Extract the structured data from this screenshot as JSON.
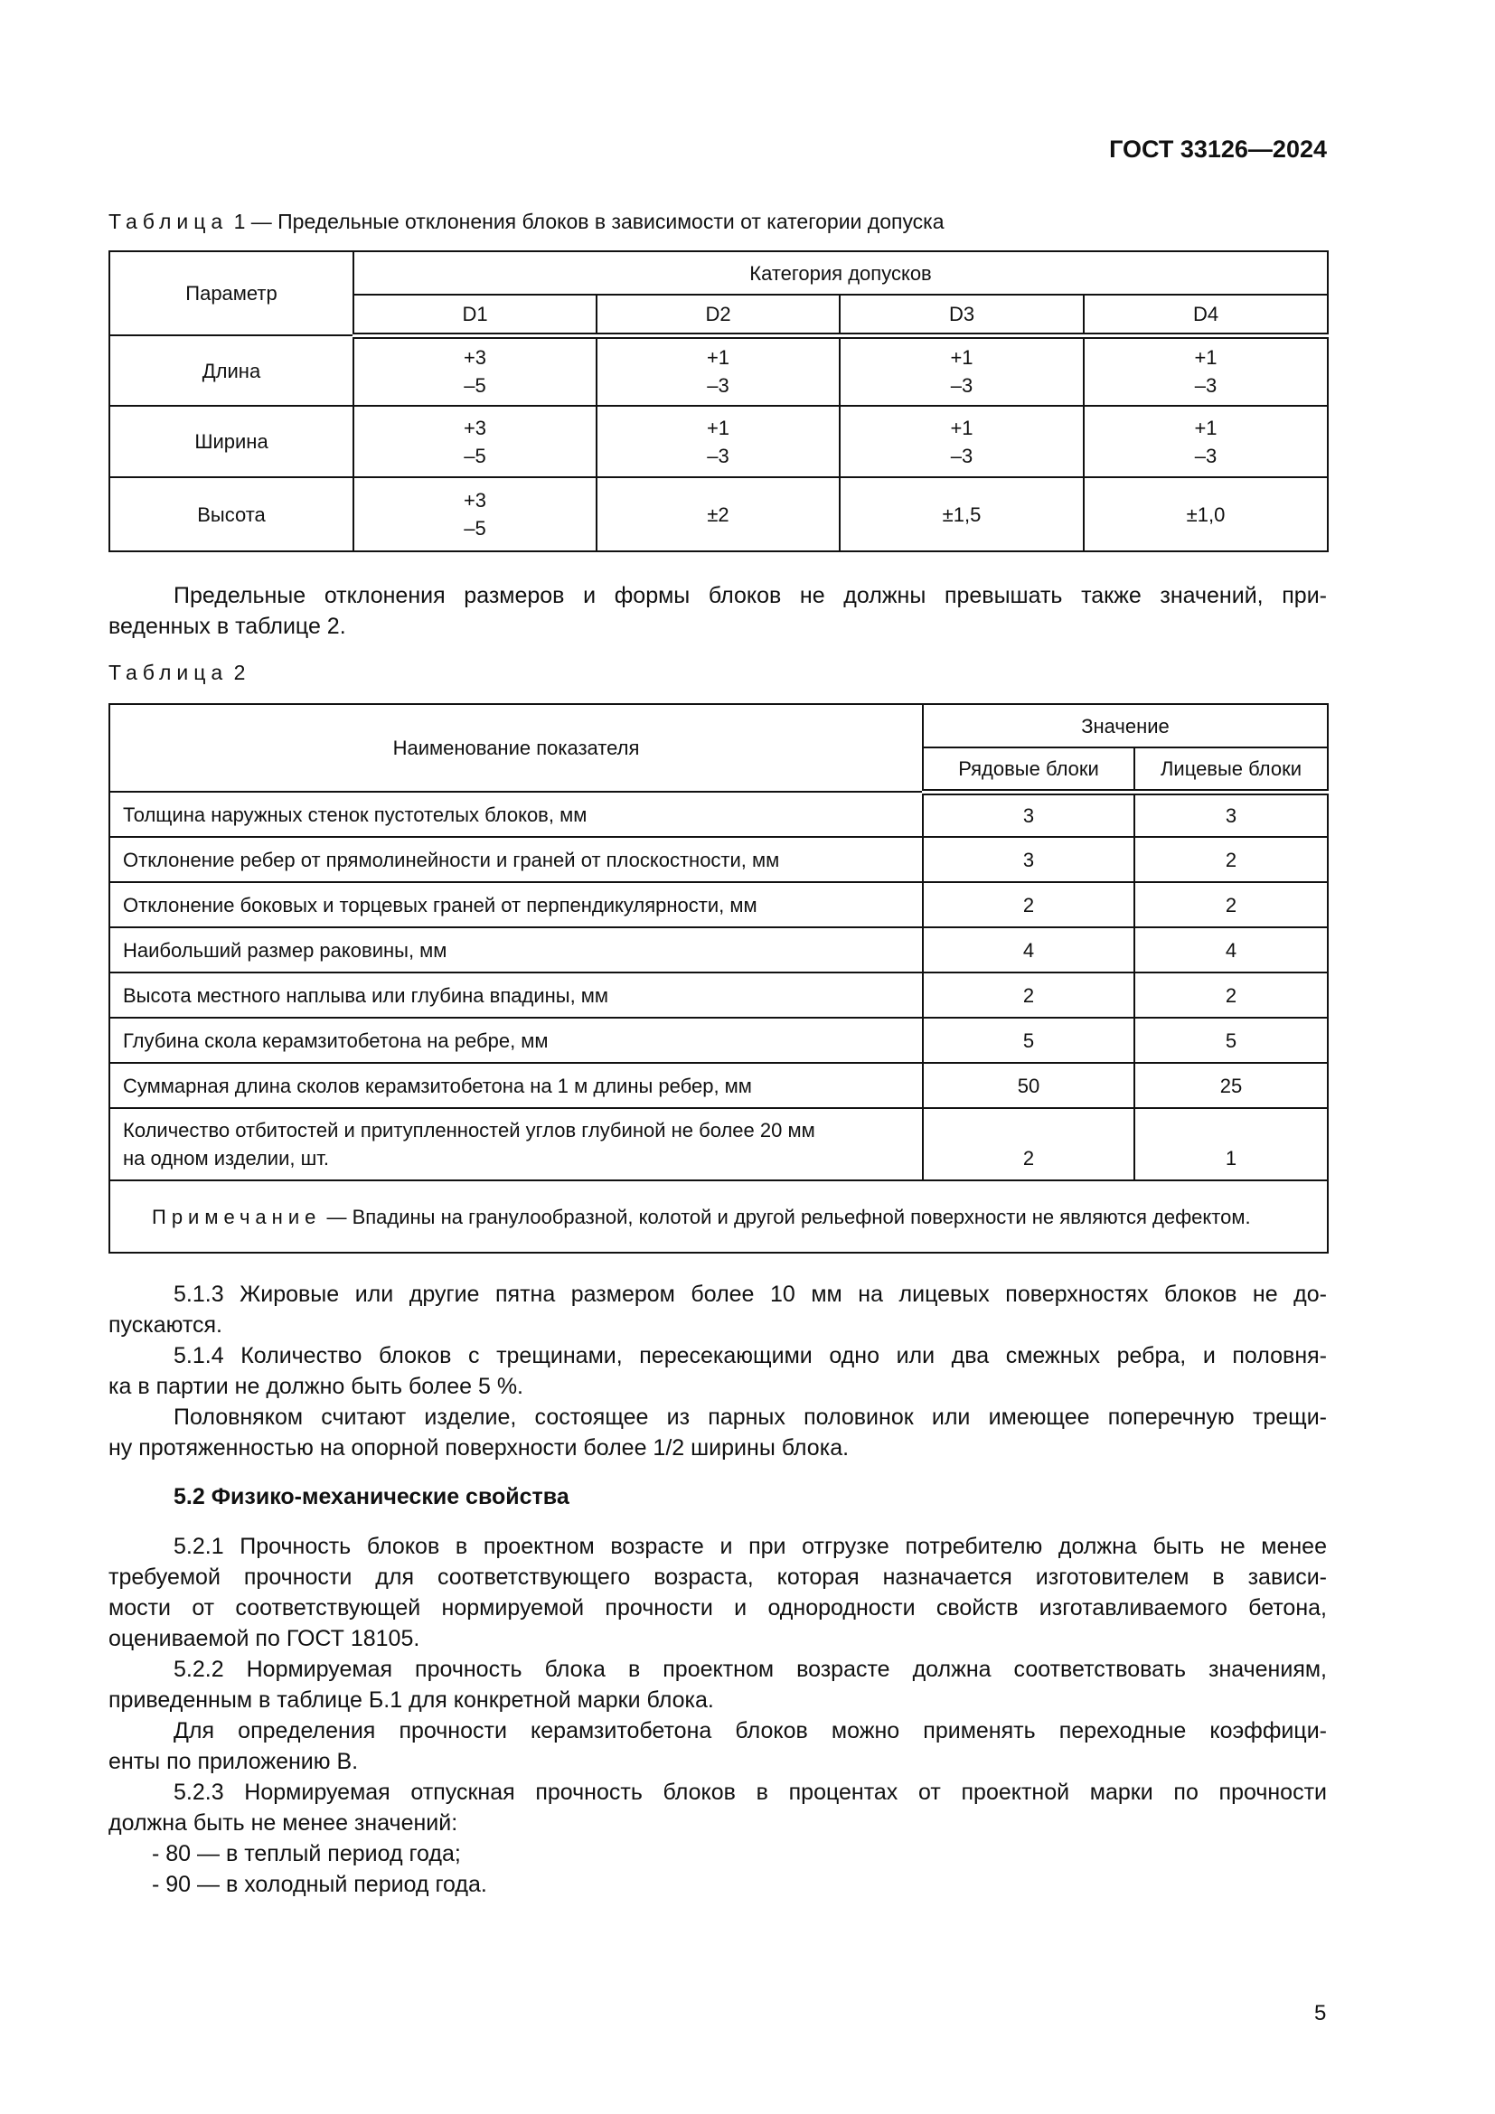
{
  "header": {
    "doc_id": "ГОСТ 33126—2024"
  },
  "table1": {
    "caption_label": "Таблица",
    "caption_text": "1 — Предельные отклонения блоков в зависимости от категории допуска",
    "col_param": "Параметр",
    "col_group": "Категория допусков",
    "categories": [
      "D1",
      "D2",
      "D3",
      "D4"
    ],
    "rows": [
      {
        "param": "Длина",
        "values": [
          "+3\n–5",
          "+1\n–3",
          "+1\n–3",
          "+1\n–3"
        ]
      },
      {
        "param": "Ширина",
        "values": [
          "+3\n–5",
          "+1\n–3",
          "+1\n–3",
          "+1\n–3"
        ]
      },
      {
        "param": "Высота",
        "values": [
          "+3\n–5",
          "±2",
          "±1,5",
          "±1,0"
        ]
      }
    ]
  },
  "para1": {
    "lines": [
      "Предельные отклонения размеров и формы блоков не должны превышать также значений, при-",
      "веденных в таблице 2."
    ]
  },
  "table2": {
    "caption_label": "Таблица",
    "caption_text": "2",
    "col_name": "Наименование показателя",
    "col_group": "Значение",
    "subcols": [
      "Рядовые блоки",
      "Лицевые блоки"
    ],
    "rows": [
      {
        "name": "Толщина наружных стенок пустотелых блоков, мм",
        "values": [
          "3",
          "3"
        ]
      },
      {
        "name": "Отклонение ребер от прямолинейности и граней от плоскостности, мм",
        "values": [
          "3",
          "2"
        ]
      },
      {
        "name": "Отклонение боковых и торцевых граней от перпендикулярности, мм",
        "values": [
          "2",
          "2"
        ]
      },
      {
        "name": "Наибольший размер раковины, мм",
        "values": [
          "4",
          "4"
        ]
      },
      {
        "name": "Высота местного наплыва или глубина впадины, мм",
        "values": [
          "2",
          "2"
        ]
      },
      {
        "name": "Глубина скола керамзитобетона на ребре, мм",
        "values": [
          "5",
          "5"
        ]
      },
      {
        "name": "Суммарная длина сколов керамзитобетона на 1 м длины ребер, мм",
        "values": [
          "50",
          "25"
        ]
      },
      {
        "name": "Количество отбитостей и притупленностей углов глубиной не более 20 мм\nна одном изделии, шт.",
        "values": [
          "2",
          "1"
        ]
      }
    ],
    "note_label": "Примечание",
    "note_text": " — Впадины на гранулообразной, колотой и другой рельефной поверхности не являются дефектом."
  },
  "block1": [
    {
      "lines": [
        "5.1.3 Жировые или другие пятна размером более 10 мм на лицевых поверхностях блоков не до-",
        "пускаются."
      ]
    },
    {
      "lines": [
        "5.1.4 Количество блоков с трещинами, пересекающими одно или два смежных ребра, и половня-",
        "ка в партии не должно быть более 5 %."
      ]
    },
    {
      "lines": [
        "Половняком считают изделие, состоящее из парных половинок или имеющее поперечную трещи-",
        "ну протяженностью на опорной поверхности более 1/2 ширины блока."
      ]
    }
  ],
  "section_heading": "5.2 Физико-механические свойства",
  "block2": [
    {
      "lines": [
        "5.2.1 Прочность блоков в проектном возрасте и при отгрузке потребителю должна быть не менее",
        "требуемой прочности для соответствующего возраста, которая назначается изготовителем в зависи-",
        "мости от соответствующей нормируемой прочности и однородности свойств изготавливаемого бетона,",
        "оцениваемой по ГОСТ 18105."
      ]
    },
    {
      "lines": [
        "5.2.2 Нормируемая прочность блока в проектном возрасте должна соответствовать значениям,",
        "приведенным в таблице Б.1 для конкретной марки блока."
      ]
    },
    {
      "lines": [
        "Для определения прочности керамзитобетона блоков можно применять переходные коэффици-",
        "енты по приложению В."
      ]
    },
    {
      "lines": [
        "5.2.3 Нормируемая отпускная прочность блоков в процентах от проектной марки по прочности",
        "должна быть не менее значений:"
      ]
    }
  ],
  "bullets": [
    "- 80 — в теплый период года;",
    "- 90 — в холодный период года."
  ],
  "page_number": "5"
}
